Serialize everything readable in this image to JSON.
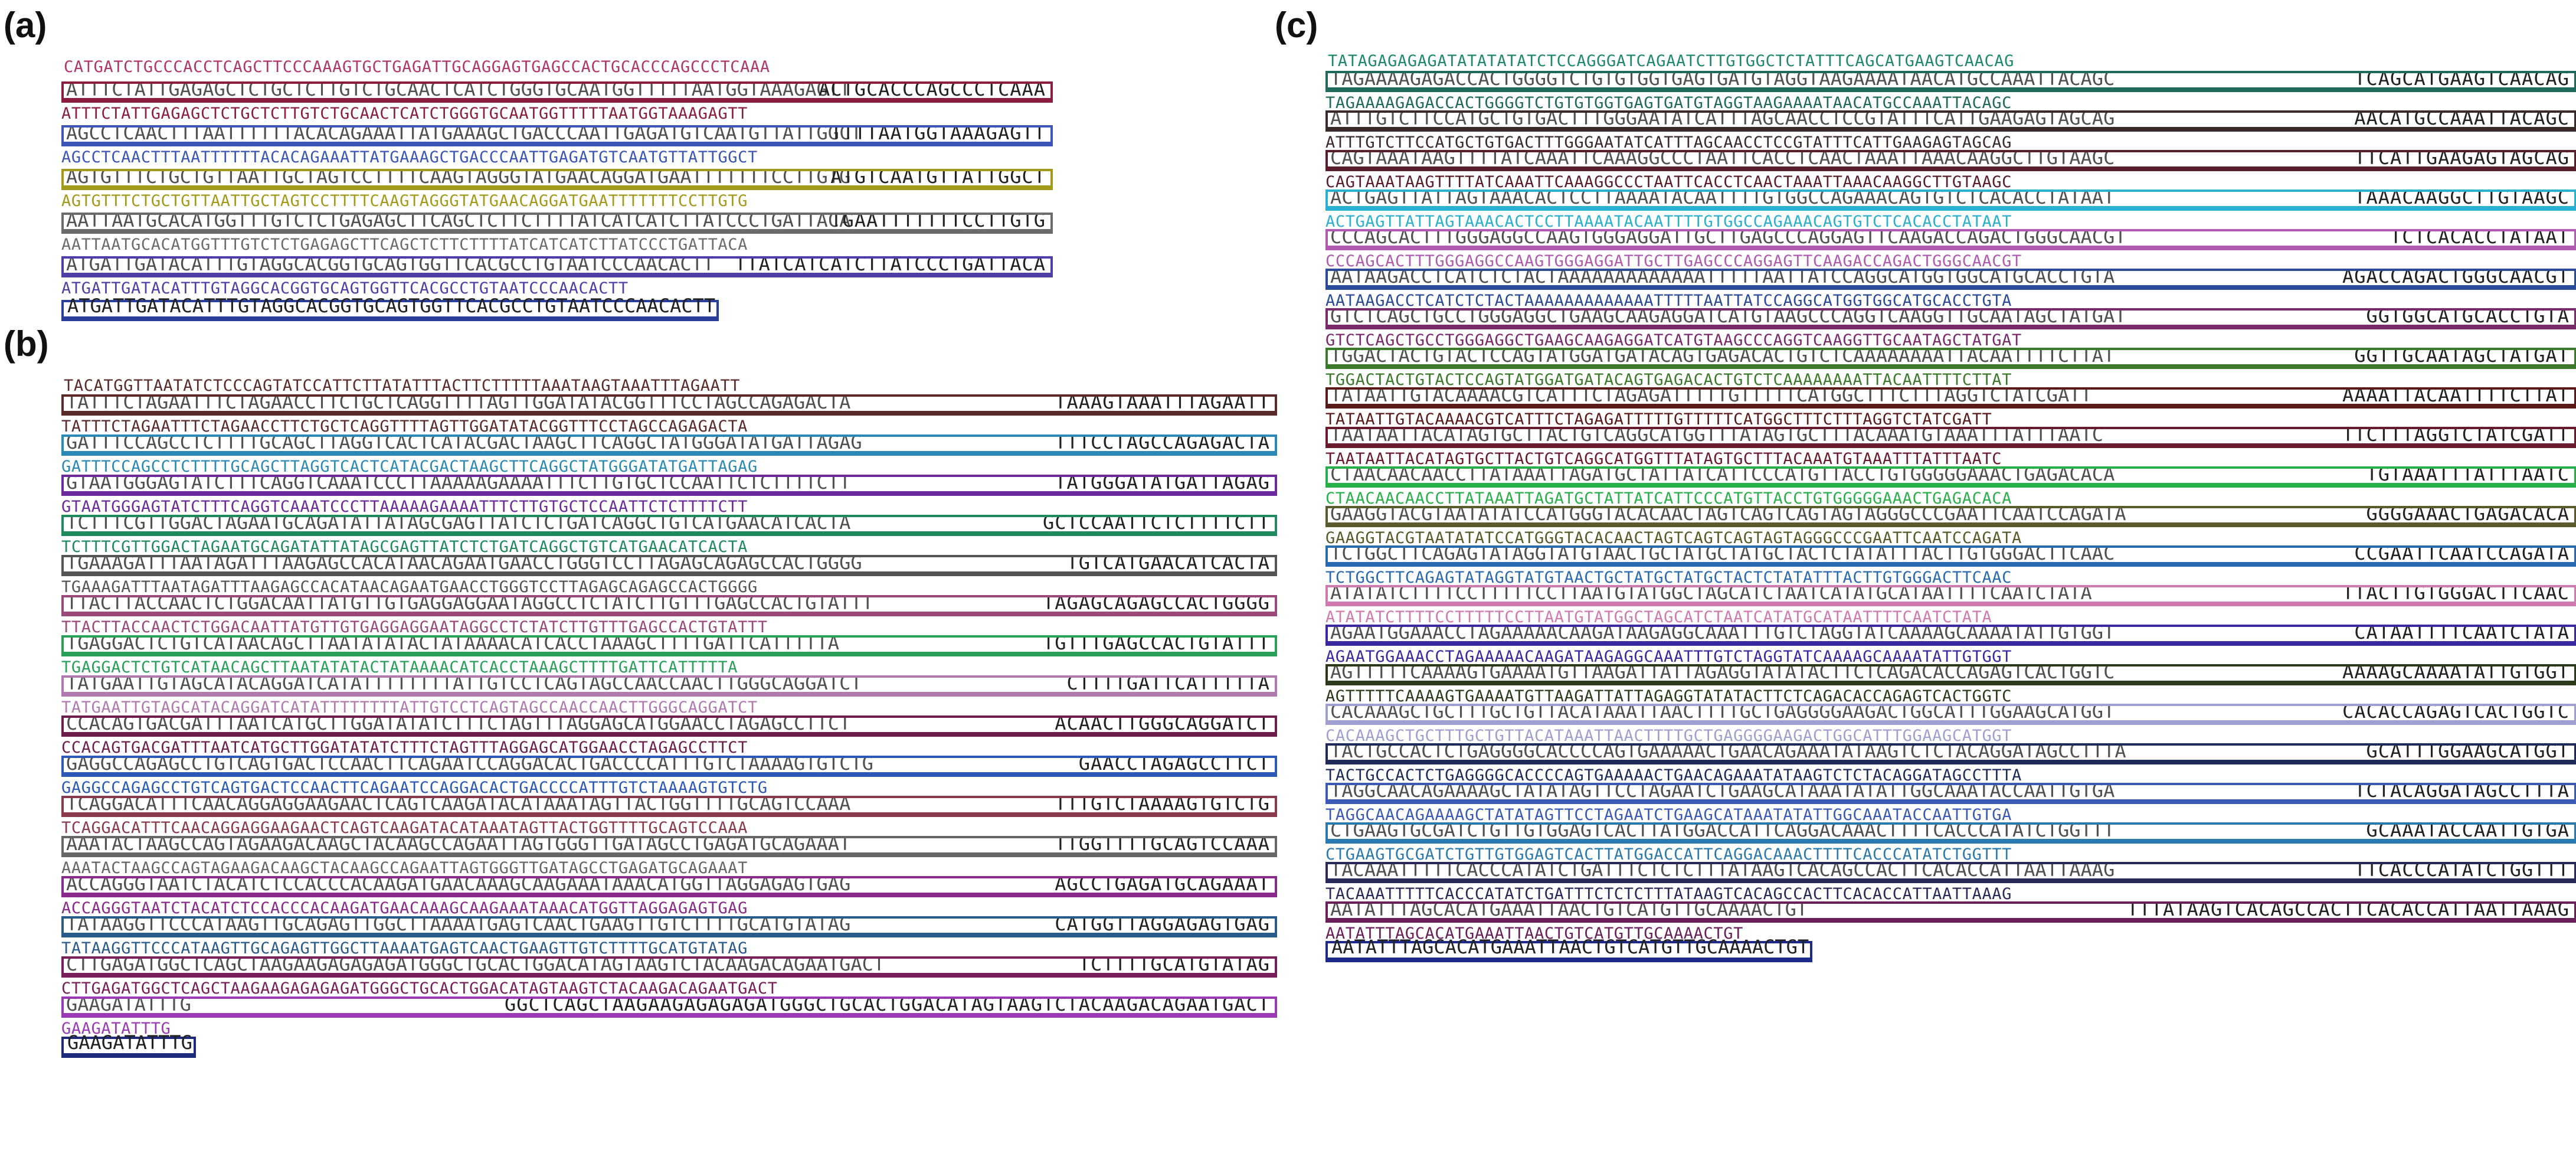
{
  "panels": [
    {
      "label": "(a)",
      "header": "CATGATCTGCCCACCTCAGCTTCCCAAAGTGCTGAGATTGCAGGAGTGAGCCACTGCACCCAGCCCTCAAA",
      "header_color": "#b0366b",
      "rows": [
        {
          "seq": "ATTTCTATTGAGAGCTCTGCTCTTGTCTGCAACTCATCTGGGTGCAATGGTTTTTAATGGTAAAGAGTT",
          "color": "#8a1e3c",
          "tail": "ACTGCACCCAGCCCTCAAA"
        },
        {
          "seq": "AGCCTCAACTTTAATTTTTTACACAGAAATTATGAAAGCTGACCCAATTGAGATGTCAATGTTATTGGCT",
          "color": "#3b56b8",
          "tail": "TTTTAATGGTAAAGAGTT"
        },
        {
          "seq": "AGTGTTTCTGCTGTTAATTGCTAGTCCTTTTCAAGTAGGGTATGAACAGGATGAATTTTTTTCCTTGTG",
          "color": "#a39a1a",
          "tail": "ATGTCAATGTTATTGGCT"
        },
        {
          "seq": "AATTAATGCACATGGTTTGTCTCTGAGAGCTTCAGCTCTTCTTTTATCATCATCTTATCCCTGATTACA",
          "color": "#6c6c6c",
          "tail": "TGAATTTTTTTCCTTGTG"
        },
        {
          "seq": "ATGATTGATACATTTGTAGGCACGGTGCAGTGGTTCACGCCTGTAATCCCAACACTT",
          "color": "#4d3fa6",
          "tail": "TTATCATCATCTTATCCCTGATTACA"
        }
      ],
      "final": "ATGATTGATACATTTGTAGGCACGGTGCAGTGGTTCACGCCTGTAATCCCAACACTT",
      "final_color": "#2a3f9a"
    },
    {
      "label": "(b)",
      "header": "TACATGGTTAATATCTCCCAGTATCCATTCTTATATTTACTTCTTTTTAAATAAGTAAATTTAGAATT",
      "header_color": "#5b2a2a",
      "rows": [
        {
          "seq": "TATTTCTAGAATTTCTAGAACCTTCTGCTCAGGTTTTAGTTGGATATACGGTTTCCTAGCCAGAGACTA",
          "color": "#5b2a2a",
          "tail": "TAAAGTAAATTTAGAATT"
        },
        {
          "seq": "GATTTCCAGCCTCTTTTGCAGCTTAGGTCACTCATACGACTAAGCTTCAGGCTATGGGATATGATTAGAG",
          "color": "#2a8ab5",
          "tail": "TTTCCTAGCCAGAGACTA"
        },
        {
          "seq": "GTAATGGGAGTATCTTTCAGGTCAAATCCCTTAAAAAGAAAATTTCTTGTGCTCCAATTCTCTTTTCTT",
          "color": "#6d2a9c",
          "tail": "TATGGGATATGATTAGAG"
        },
        {
          "seq": "TCTTTCGTTGGACTAGAATGCAGATATTATAGCGAGTTATCTCTGATCAGGCTGTCATGAACATCACTA",
          "color": "#1f8a5e",
          "tail": "GCTCCAATTCTCTTTTCTT"
        },
        {
          "seq": "TGAAAGATTTAATAGATTTAAGAGCCACATAACAGAATGAACCTGGGTCCTTAGAGCAGAGCCACTGGGG",
          "color": "#555555",
          "tail": "TGTCATGAACATCACTA"
        },
        {
          "seq": "TTACTTACCAACTCTGGACAATTATGTTGTGAGGAGGAATAGGCCTCTATCTTGTTTGAGCCACTGTATTT",
          "color": "#9a4a7a",
          "tail": "TAGAGCAGAGCCACTGGGG"
        },
        {
          "seq": "TGAGGACTCTGTCATAACAGCTTAATATATACTATAAAACATCACCTAAAGCTTTTGATTCATTTTTA",
          "color": "#28a05a",
          "tail": "TGTTTGAGCCACTGTATTT"
        },
        {
          "seq": "TATGAATTGTAGCATACAGGATCATATTTTTTTTATTGTCCTCAGTAGCCAACCAACTTGGGCAGGATCT",
          "color": "#b07ab0",
          "tail": "CTTTTGATTCATTTTTA"
        },
        {
          "seq": "CCACAGTGACGATTTAATCATGCTTGGATATATCTTTCTAGTTTAGGAGCATGGAACCTAGAGCCTTCT",
          "color": "#6d1e4a",
          "tail": "ACAACTTGGGCAGGATCT"
        },
        {
          "seq": "GAGGCCAGAGCCTGTCAGTGACTCCAACTTCAGAATCCAGGACACTGACCCCATTTGTCTAAAAGTGTCTG",
          "color": "#2a5ab5",
          "tail": "GAACCTAGAGCCTTCT"
        },
        {
          "seq": "TCAGGACATTTCAACAGGAGGAAGAACTCAGTCAAGATACATAAATAGTTACTGGTTTTGCAGTCCAAA",
          "color": "#8a3a4a",
          "tail": "TTTGTCTAAAAGTGTCTG"
        },
        {
          "seq": "AAATACTAAGCCAGTAGAAGACAAGCTACAAGCCAGAATTAGTGGGTTGATAGCCTGAGATGCAGAAAT",
          "color": "#666666",
          "tail": "TTGGTTTTGCAGTCCAAA"
        },
        {
          "seq": "ACCAGGGTAATCTACATCTCCACCCACAAGATGAACAAAGCAAGAAATAAACATGGTTAGGAGAGTGAG",
          "color": "#8a2a8a",
          "tail": "AGCCTGAGATGCAGAAAT"
        },
        {
          "seq": "TATAAGGTTCCCATAAGTTGCAGAGTTGGCTTAAAATGAGTCAACTGAAGTTGTCTTTTGCATGTATAG",
          "color": "#2a5a8a",
          "tail": "CATGGTTAGGAGAGTGAG"
        },
        {
          "seq": "CTTGAGATGGCTCAGCTAAGAAGAGAGAGATGGGCTGCACTGGACATAGTAAGTCTACAAGACAGAATGACT",
          "color": "#7a1e5a",
          "tail": "TCTTTTGCATGTATAG"
        },
        {
          "seq": "GAAGATATTTG",
          "color": "#9a3ab5",
          "tail": "GGCTCAGCTAAGAAGAGAGAGATGGGCTGCACTGGACATAGTAAGTCTACAAGACAGAATGACT"
        }
      ],
      "final": "GAAGATATTTG",
      "final_color": "#1e2a7a"
    },
    {
      "label": "(c)",
      "header": "TATAGAGAGAGATATATATATCTCCAGGGATCAGAATCTTGTGGCTCTATTTCAGCATGAAGTCAACAG",
      "header_color": "#1f8a6a",
      "rows": [
        {
          "seq": "TAGAAAAGAGACCACTGGGGTCTGTGTGGTGAGTGATGTAGGTAAGAAAATAACATGCCAAATTACAGC",
          "color": "#1f6a5a",
          "tail": "TCAGCATGAAGTCAACAG"
        },
        {
          "seq": "ATTTGTCTTCCATGCTGTGACTTTGGGAATATCATTTAGCAACCTCCGTATTTCATTGAAGAGTAGCAG",
          "color": "#3a2a2a",
          "tail": "AACATGCCAAATTACAGC"
        },
        {
          "seq": "CAGTAAATAAGTTTTATCAAATTCAAAGGCCCTAATTCACCTCAACTAAATTAAACAAGGCTTGTAAGC",
          "color": "#5a1e2a",
          "tail": "TTCATTGAAGAGTAGCAG"
        },
        {
          "seq": "ACTGAGTTATTAGTAAACACTCCTTAAAATACAATTTTGTGGCCAGAAACAGTGTCTCACACCTATAAT",
          "color": "#2ab0d0",
          "tail": "TAAACAAGGCTTGTAAGC"
        },
        {
          "seq": "CCCAGCACTTTGGGAGGCCAAGTGGGAGGATTGCTTGAGCCCAGGAGTTCAAGACCAGACTGGGCAACGT",
          "color": "#b05ab0",
          "tail": "TCTCACACCTATAAT"
        },
        {
          "seq": "AATAAGACCTCATCTCTACTAAAAAAAAAAAAATTTTTAATTATCCAGGCATGGTGGCATGCACCTGTA",
          "color": "#2a4a9a",
          "tail": "AGACCAGACTGGGCAACGT"
        },
        {
          "seq": "GTCTCAGCTGCCTGGGAGGCTGAAGCAAGAGGATCATGTAAGCCCAGGTCAAGGTTGCAATAGCTATGAT",
          "color": "#7a2a6a",
          "tail": "GGTGGCATGCACCTGTA"
        },
        {
          "seq": "TGGACTACTGTACTCCAGTATGGATGATACAGTGAGACACTGTCTCAAAAAAAATTACAATTTTCTTAT",
          "color": "#3a7a2a",
          "tail": "GGTTGCAATAGCTATGAT"
        },
        {
          "seq": "TATAATTGTACAAAACGTCATTTCTAGAGATTTTTGTTTTTCATGGCTTTCTTTAGGTCTATCGATT",
          "color": "#5a1a1a",
          "tail": "AAAATTACAATTTTCTTAT"
        },
        {
          "seq": "TAATAATTACATAGTGCTTACTGTCAGGCATGGTTTATAGTGCTTTACAAATGTAAATTTATTTAATC",
          "color": "#6a1a2a",
          "tail": "TTCTTTAGGTCTATCGATT"
        },
        {
          "seq": "CTAACAACAACCTTATAAATTAGATGCTATTATCATTCCCATGTTACCTGTGGGGGAAACTGAGACACA",
          "color": "#2ab04a",
          "tail": "TGTAAATTTATTTAATC"
        },
        {
          "seq": "GAAGGTACGTAATATATCCATGGGTACACAACTAGTCAGTCAGTAGTAGGGCCCGAATTCAATCCAGATA",
          "color": "#5a5a2a",
          "tail": "GGGGAAACTGAGACACA"
        },
        {
          "seq": "TCTGGCTTCAGAGTATAGGTATGTAACTGCTATGCTATGCTACTCTATATTTACTTGTGGGACTTCAAC",
          "color": "#2a6ab0",
          "tail": "CCGAATTCAATCCAGATA"
        },
        {
          "seq": "ATATATCTTTTCCTTTTTCCTTAATGTATGGCTAGCATCTAATCATATGCATAATTTTCAATCTATA",
          "color": "#d07ab0",
          "tail": "TTACTTGTGGGACTTCAAC"
        },
        {
          "seq": "AGAATGGAAACCTAGAAAAACAAGATAAGAGGCAAATTTGTCTAGGTATCAAAAGCAAAATATTGTGGT",
          "color": "#3a2aa0",
          "tail": "CATAATTTTCAATCTATA"
        },
        {
          "seq": "AGTTTTTCAAAAGTGAAAATGTTAAGATTATTAGAGGTATATACTTCTCAGACACCAGAGTCACTGGTC",
          "color": "#2a3a1a",
          "tail": "AAAAGCAAAATATTGTGGT"
        },
        {
          "seq": "CACAAAGCTGCTTTGCTGTTACATAAATTAACTTTTGCTGAGGGGAAGACTGGCATTTGGAAGCATGGT",
          "color": "#a0a0d0",
          "tail": "CACACCAGAGTCACTGGTC"
        },
        {
          "seq": "TACTGCCACTCTGAGGGGCACCCCAGTGAAAAACTGAACAGAAATATAAGTCTCTACAGGATAGCCTTTA",
          "color": "#1e2a5a",
          "tail": "GCATTTGGAAGCATGGT"
        },
        {
          "seq": "TAGGCAACAGAAAAGCTATATAGTTCCTAGAATCTGAAGCATAAATATATTGGCAAATACCAATTGTGA",
          "color": "#3a5ab5",
          "tail": "TCTACAGGATAGCCTTTA"
        },
        {
          "seq": "CTGAAGTGCGATCTGTTGTGGAGTCACTTATGGACCATTCAGGACAAACTTTTCACCCATATCTGGTTT",
          "color": "#2a7ab0",
          "tail": "GCAAATACCAATTGTGA"
        },
        {
          "seq": "TACAAATTTTTCACCCATATCTGATTTCTCTCTTTATAAGTCACAGCCACTTCACACCATTAATTAAAG",
          "color": "#2a2a5a",
          "tail": "TTCACCCATATCTGGTTT"
        },
        {
          "seq": "AATATTTAGCACATGAAATTAACTGTCATGTTGCAAAACTGT",
          "color": "#6a1e5a",
          "tail": "TTTATAAGTCACAGCCACTTCACACCATTAATTAAAG"
        }
      ],
      "final": "AATATTTAGCACATGAAATTAACTGTCATGTTGCAAAACTGT",
      "final_color": "#1e2a8a"
    }
  ]
}
